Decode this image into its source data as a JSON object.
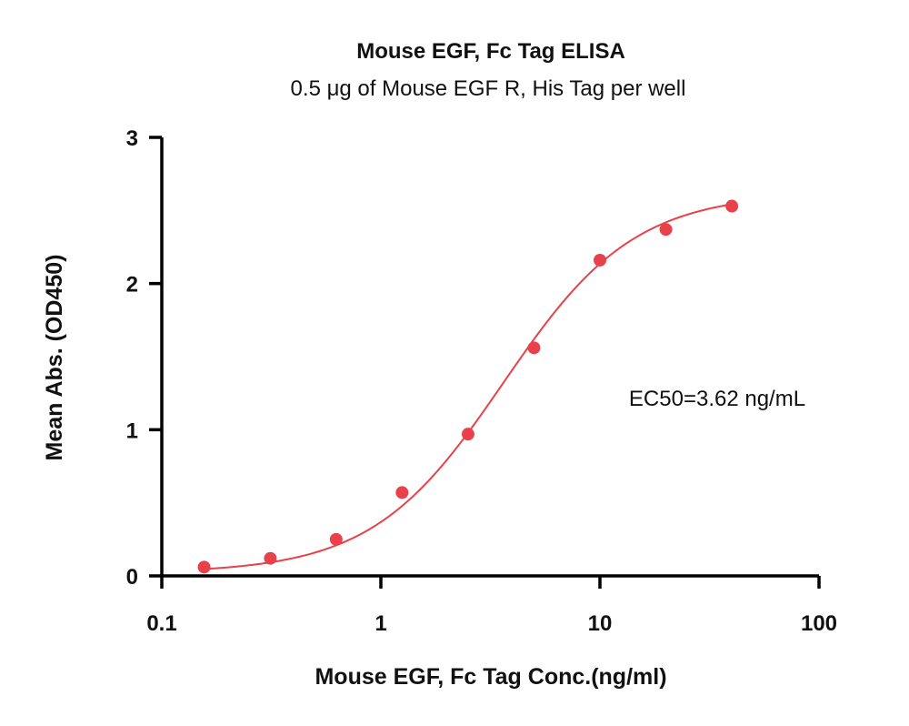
{
  "chart_data": {
    "type": "scatter",
    "title": "Mouse EGF, Fc Tag ELISA",
    "subtitle": "0.5 μg of Mouse EGF R, His Tag per well",
    "xlabel": "Mouse EGF, Fc Tag Conc.(ng/ml)",
    "ylabel": "Mean Abs. (OD450)",
    "x_scale": "log",
    "xlim": [
      0.1,
      100
    ],
    "ylim": [
      0,
      3
    ],
    "x_ticks": [
      0.1,
      1,
      10,
      100
    ],
    "x_tick_labels": [
      "0.1",
      "1",
      "10",
      "100"
    ],
    "y_ticks": [
      0,
      1,
      2,
      3
    ],
    "y_tick_labels": [
      "0",
      "1",
      "2",
      "3"
    ],
    "grid": false,
    "series": [
      {
        "color": "#e8414a",
        "points": [
          {
            "x": 0.156,
            "y": 0.06
          },
          {
            "x": 0.313,
            "y": 0.12
          },
          {
            "x": 0.625,
            "y": 0.25
          },
          {
            "x": 1.25,
            "y": 0.57
          },
          {
            "x": 2.5,
            "y": 0.97
          },
          {
            "x": 5,
            "y": 1.56
          },
          {
            "x": 10,
            "y": 2.16
          },
          {
            "x": 20,
            "y": 2.37
          },
          {
            "x": 40,
            "y": 2.53
          }
        ],
        "fit": {
          "model": "4PL",
          "bottom": 0.02,
          "top": 2.62,
          "ec50": 3.62,
          "hill": 1.45
        }
      }
    ],
    "annotations": [
      "EC50=3.62 ng/mL"
    ]
  }
}
